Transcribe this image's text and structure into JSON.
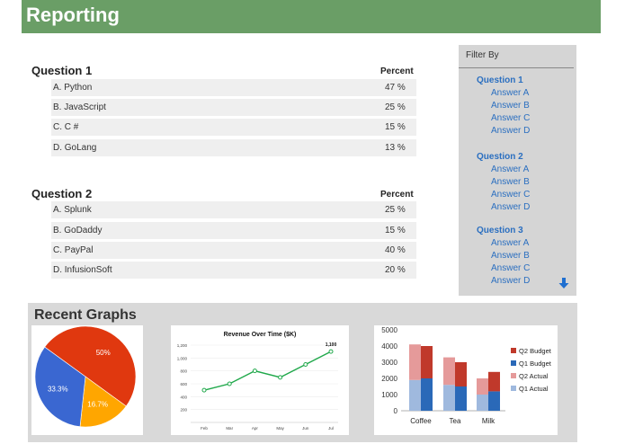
{
  "header": {
    "title": "Reporting"
  },
  "questions": [
    {
      "title": "Question 1",
      "percent_header": "Percent",
      "answers": [
        {
          "label": "A. Python",
          "value": "47 %"
        },
        {
          "label": "B. JavaScript",
          "value": "25 %"
        },
        {
          "label": "C. C #",
          "value": "15 %"
        },
        {
          "label": "D. GoLang",
          "value": "13 %"
        }
      ]
    },
    {
      "title": "Question 2",
      "percent_header": "Percent",
      "answers": [
        {
          "label": "A. Splunk",
          "value": "25 %"
        },
        {
          "label": "B. GoDaddy",
          "value": "15 %"
        },
        {
          "label": "C. PayPal",
          "value": "40 %"
        },
        {
          "label": "D. InfusionSoft",
          "value": "20 %"
        }
      ]
    }
  ],
  "filter": {
    "title": "Filter By",
    "groups": [
      {
        "question": "Question 1",
        "answers": [
          "Answer A",
          "Answer B",
          "Answer C",
          "Answer D"
        ]
      },
      {
        "question": "Question 2",
        "answers": [
          "Answer A",
          "Answer B",
          "Answer C",
          "Answer D"
        ]
      },
      {
        "question": "Question 3",
        "answers": [
          "Answer A",
          "Answer B",
          "Answer C",
          "Answer D"
        ]
      }
    ],
    "scroll_icon": "arrow-down-icon"
  },
  "graphs": {
    "title": "Recent Graphs"
  },
  "colors": {
    "header_bg": "#6a9e66",
    "link": "#2b6fc0",
    "pie_red": "#e0380f",
    "pie_orange": "#ffa600",
    "pie_blue": "#3a67d1",
    "line_green": "#1fa84a",
    "q2_budget": "#c0392b",
    "q1_budget": "#2a69b8",
    "q2_actual": "#e59a9a",
    "q1_actual": "#9fb9de"
  },
  "chart_data": [
    {
      "type": "pie",
      "labels": [
        "50%",
        "16.7%",
        "33.3%"
      ],
      "values": [
        50,
        16.7,
        33.3
      ],
      "colors": [
        "#e0380f",
        "#ffa600",
        "#3a67d1"
      ]
    },
    {
      "type": "line",
      "title": "Revenue Over Time ($K)",
      "categories": [
        "Feb",
        "Mar",
        "Apr",
        "May",
        "Jun",
        "Jul"
      ],
      "values": [
        500,
        600,
        800,
        700,
        900,
        1100
      ],
      "end_label": "1,100",
      "ylim": [
        0,
        1200
      ],
      "yticks": [
        200,
        400,
        600,
        800,
        1000,
        1200
      ],
      "ytick_labels": [
        "200",
        "400",
        "600",
        "800",
        "1,000",
        "1,200"
      ]
    },
    {
      "type": "bar",
      "categories": [
        "Coffee",
        "Tea",
        "Milk"
      ],
      "series": [
        {
          "name": "Q2 Budget",
          "values": [
            4000,
            3000,
            2400
          ]
        },
        {
          "name": "Q1 Budget",
          "values": [
            2000,
            1500,
            1200
          ]
        },
        {
          "name": "Q2 Actual",
          "values": [
            4100,
            3300,
            2000
          ]
        },
        {
          "name": "Q1 Actual",
          "values": [
            1900,
            1600,
            1000
          ]
        }
      ],
      "ylim": [
        0,
        5000
      ],
      "yticks": [
        "0",
        "1000",
        "2000",
        "3000",
        "4000",
        "5000"
      ]
    }
  ]
}
